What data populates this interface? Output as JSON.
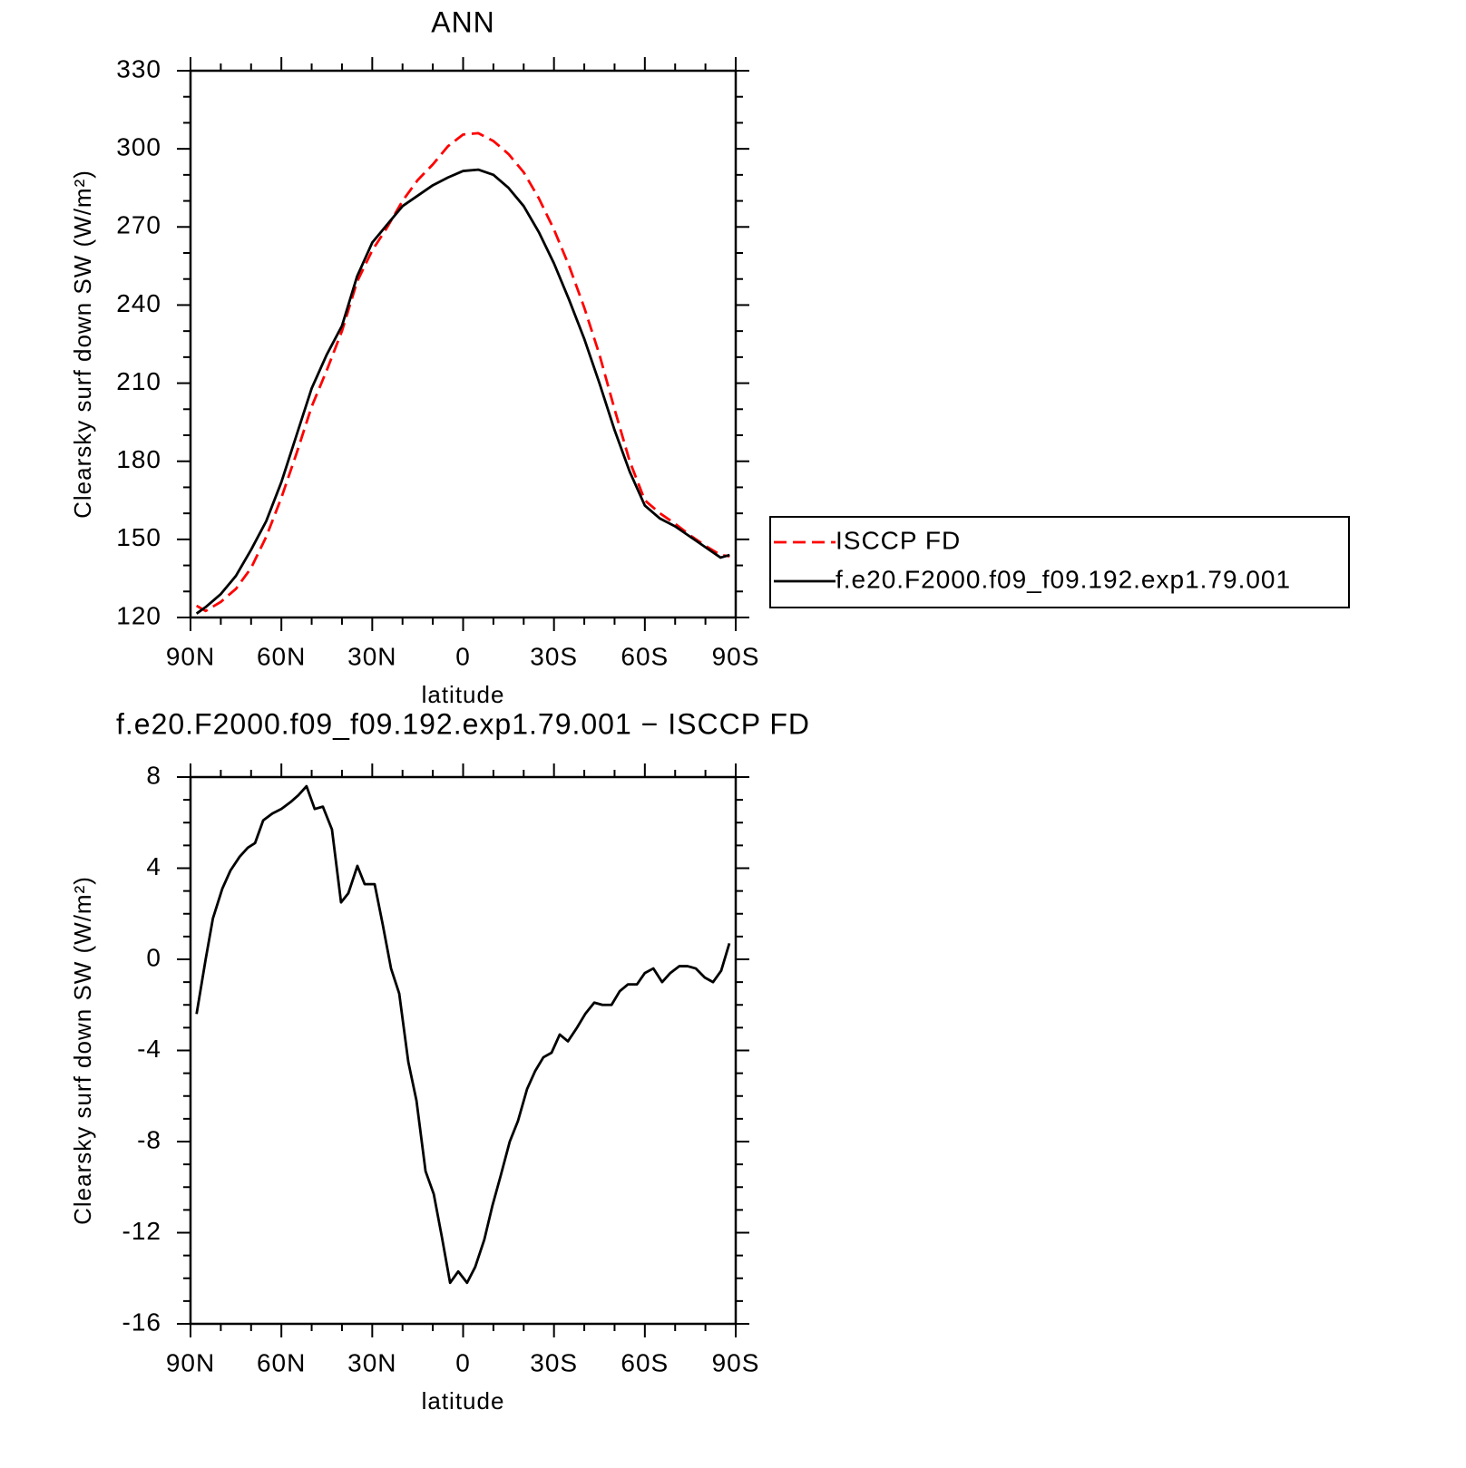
{
  "chart_data": [
    {
      "type": "line",
      "title": "ANN",
      "xlabel": "latitude",
      "ylabel": "Clearsky surf down SW (W/m²)",
      "x": [
        88,
        85,
        80,
        75,
        70,
        65,
        60,
        55,
        50,
        45,
        40,
        35,
        30,
        25,
        20,
        15,
        10,
        5,
        0,
        -5,
        -10,
        -15,
        -20,
        -25,
        -30,
        -35,
        -40,
        -45,
        -50,
        -55,
        -60,
        -65,
        -70,
        -75,
        -80,
        -85,
        -88
      ],
      "series": [
        {
          "name": "ISCCP FD",
          "color": "#ff0000",
          "line_style": "dashed",
          "values": [
            124.5,
            122.5,
            126,
            131,
            139,
            151,
            166,
            183,
            201,
            215,
            230,
            249,
            261,
            270,
            280,
            288,
            294,
            301,
            305.5,
            306,
            303,
            298,
            291,
            281,
            269,
            255,
            239,
            221,
            200,
            180,
            165,
            160,
            156,
            151.5,
            147.5,
            144,
            143.5
          ]
        },
        {
          "name": "f.e20.F2000.f09_f09.192.exp1.79.001",
          "color": "#000000",
          "line_style": "solid",
          "values": [
            121.5,
            124,
            129,
            136,
            146,
            157,
            172,
            190,
            208,
            221,
            232,
            251,
            264,
            271,
            278,
            282,
            286,
            289,
            291.5,
            292,
            290,
            285,
            278,
            268,
            256,
            242,
            227,
            210,
            192,
            176,
            163,
            158,
            155,
            151,
            147,
            143,
            144
          ]
        }
      ],
      "xlim": [
        90,
        -90
      ],
      "xticks": [
        {
          "value": 90,
          "label": "90N"
        },
        {
          "value": 60,
          "label": "60N"
        },
        {
          "value": 30,
          "label": "30N"
        },
        0,
        {
          "value": -30,
          "label": "30S"
        },
        {
          "value": -60,
          "label": "60S"
        },
        {
          "value": -90,
          "label": "90S"
        }
      ],
      "xminorticks": [
        80,
        70,
        50,
        40,
        20,
        10,
        -10,
        -20,
        -40,
        -50,
        -70,
        -80
      ],
      "ylim": [
        120,
        330
      ],
      "yticks": [
        120,
        150,
        180,
        210,
        240,
        270,
        300,
        330
      ],
      "yminorticks": [
        130,
        140,
        160,
        170,
        190,
        200,
        220,
        230,
        250,
        260,
        280,
        290,
        310,
        320
      ],
      "legend": "right"
    },
    {
      "type": "line",
      "title": "f.e20.F2000.f09_f09.192.exp1.79.001 − ISCCP FD",
      "xlabel": "latitude",
      "ylabel": "Clearsky surf down SW (W/m²)",
      "x": [
        88,
        85,
        82.6,
        79.5,
        76.8,
        73.8,
        71.1,
        68.7,
        66,
        63,
        60,
        57,
        54.4,
        51.7,
        49,
        46.3,
        43.3,
        40.3,
        37.9,
        34.9,
        32.5,
        29.2,
        26.5,
        23.8,
        21.1,
        18.1,
        15.4,
        12.4,
        9.7,
        7,
        4.3,
        1.6,
        -1.3,
        -4,
        -7,
        -9.7,
        -12.4,
        -15.4,
        -18.1,
        -21.1,
        -23.8,
        -26.5,
        -29.2,
        -31.9,
        -34.6,
        -37.6,
        -40.3,
        -43.3,
        -46,
        -49,
        -51.7,
        -54.4,
        -57.4,
        -60,
        -62.8,
        -65.7,
        -68.4,
        -71.4,
        -74.1,
        -76.8,
        -79.8,
        -82.5,
        -85.2,
        -87.9
      ],
      "series": [
        {
          "color": "#000000",
          "line_style": "solid",
          "values": [
            -2.4,
            0.0,
            1.8,
            3.1,
            3.9,
            4.5,
            4.9,
            5.1,
            6.1,
            6.4,
            6.6,
            6.9,
            7.2,
            7.6,
            6.6,
            6.7,
            5.7,
            2.5,
            2.9,
            4.1,
            3.3,
            3.3,
            1.5,
            -0.4,
            -1.5,
            -4.5,
            -6.2,
            -9.3,
            -10.3,
            -12.2,
            -14.2,
            -13.7,
            -14.2,
            -13.5,
            -12.3,
            -10.8,
            -9.5,
            -8.0,
            -7.1,
            -5.7,
            -4.9,
            -4.3,
            -4.1,
            -3.3,
            -3.6,
            -3.0,
            -2.4,
            -1.9,
            -2.0,
            -2.0,
            -1.4,
            -1.1,
            -1.1,
            -0.6,
            -0.4,
            -1.0,
            -0.6,
            -0.3,
            -0.3,
            -0.4,
            -0.8,
            -1.0,
            -0.5,
            0.7
          ]
        }
      ],
      "xlim": [
        90,
        -90
      ],
      "xticks": [
        {
          "value": 90,
          "label": "90N"
        },
        {
          "value": 60,
          "label": "60N"
        },
        {
          "value": 30,
          "label": "30N"
        },
        0,
        {
          "value": -30,
          "label": "30S"
        },
        {
          "value": -60,
          "label": "60S"
        },
        {
          "value": -90,
          "label": "90S"
        }
      ],
      "xminorticks": [
        80,
        70,
        50,
        40,
        20,
        10,
        -10,
        -20,
        -40,
        -50,
        -70,
        -80
      ],
      "ylim": [
        -16,
        8
      ],
      "yticks": [
        -16,
        -12,
        -8,
        -4,
        0,
        4,
        8
      ],
      "yminorticks": [
        7,
        6,
        5,
        3,
        2,
        1,
        -1,
        -2,
        -3,
        -5,
        -6,
        -7,
        -9,
        -10,
        -11,
        -13,
        -14,
        -15
      ]
    }
  ]
}
